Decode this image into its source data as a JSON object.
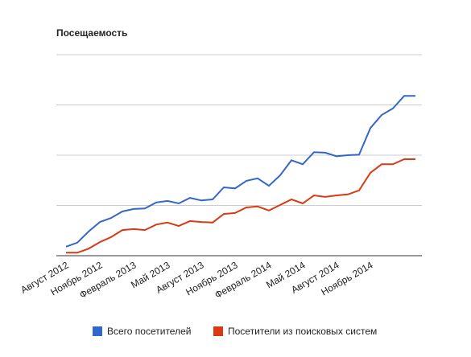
{
  "chart_data": {
    "type": "line",
    "title": "Посещаемость",
    "categories": [
      "Август 2012",
      null,
      null,
      "Ноябрь 2012",
      null,
      null,
      "Февраль 2013",
      null,
      null,
      "Май 2013",
      null,
      null,
      "Август 2013",
      null,
      null,
      "Ноябрь 2013",
      null,
      null,
      "Февраль 2014",
      null,
      null,
      "Май 2014",
      null,
      null,
      "Август 2014",
      null,
      null,
      "Ноябрь 2014",
      null,
      null,
      null,
      null
    ],
    "series": [
      {
        "name": "Всего посетителей",
        "color": "#3366cc",
        "values": [
          0.18,
          0.26,
          0.48,
          0.67,
          0.75,
          0.88,
          0.93,
          0.94,
          1.06,
          1.09,
          1.04,
          1.15,
          1.1,
          1.12,
          1.36,
          1.34,
          1.49,
          1.54,
          1.39,
          1.6,
          1.9,
          1.82,
          2.06,
          2.05,
          1.98,
          2.0,
          2.01,
          2.54,
          2.8,
          2.93,
          3.18,
          3.18
        ]
      },
      {
        "name": "Посетители из поисковых систем",
        "color": "#dc3912",
        "values": [
          0.06,
          0.06,
          0.14,
          0.27,
          0.37,
          0.51,
          0.53,
          0.51,
          0.62,
          0.66,
          0.59,
          0.69,
          0.67,
          0.66,
          0.83,
          0.85,
          0.96,
          0.98,
          0.9,
          1.01,
          1.12,
          1.04,
          1.2,
          1.17,
          1.2,
          1.22,
          1.3,
          1.65,
          1.82,
          1.82,
          1.92,
          1.92
        ]
      }
    ],
    "ylim": [
      0,
      4
    ],
    "yticks": [
      0,
      1,
      2,
      3,
      4
    ],
    "grid": true,
    "show_ytick_labels": false,
    "legend": "bottom"
  }
}
